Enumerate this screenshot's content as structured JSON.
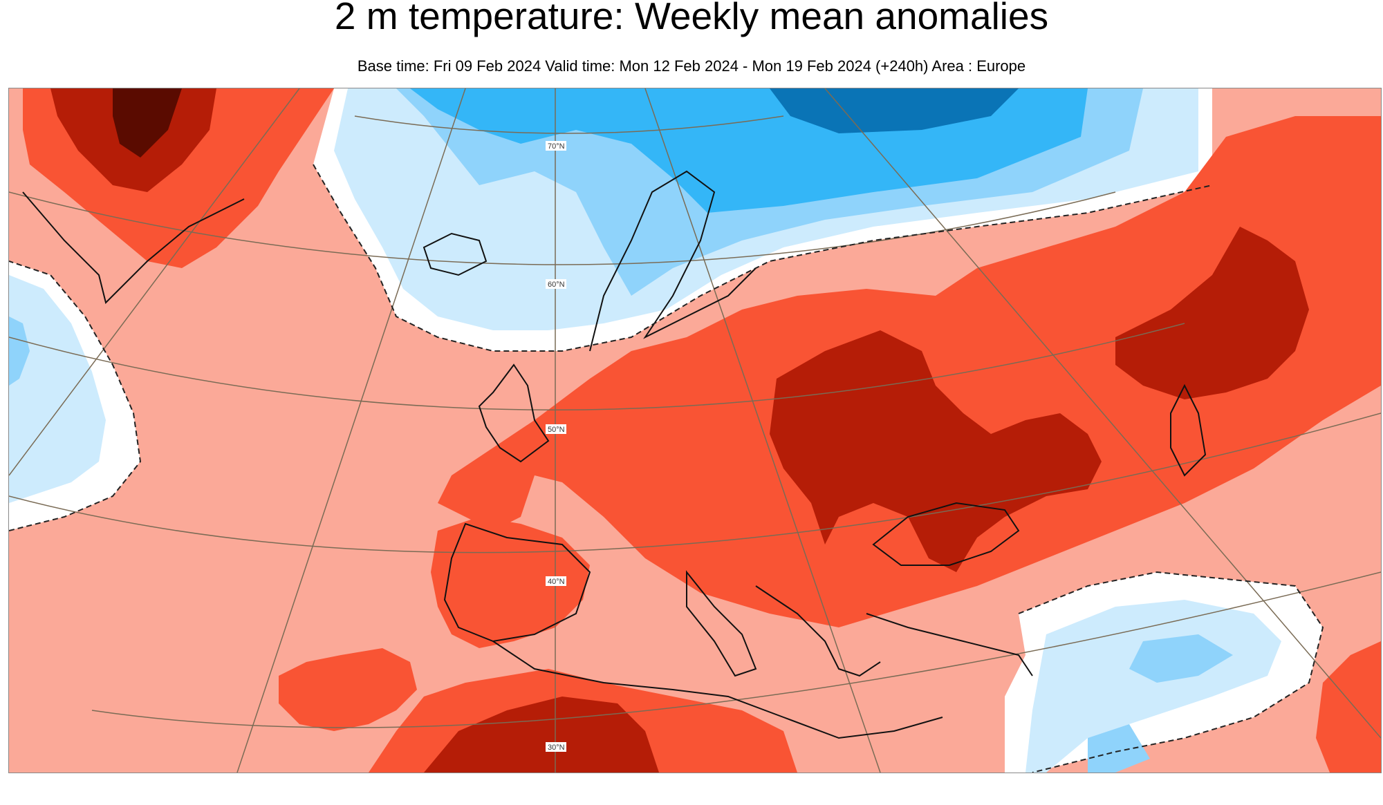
{
  "title": "2 m temperature: Weekly mean anomalies",
  "subtitle": "Base time: Fri 09 Feb 2024 Valid time: Mon 12 Feb 2024 - Mon 19 Feb 2024 (+240h) Area : Europe",
  "map": {
    "latitude_labels": [
      "70°N",
      "60°N",
      "50°N",
      "40°N",
      "30°N"
    ],
    "palette": {
      "warm_1": "#fba998",
      "warm_2": "#f95434",
      "warm_3": "#b51d07",
      "warm_4": "#5a0b00",
      "neutral": "#ffffff",
      "cold_1": "#cdebfd",
      "cold_2": "#8fd3fb",
      "cold_3": "#34b6f7",
      "cold_4": "#0a74b6"
    }
  }
}
